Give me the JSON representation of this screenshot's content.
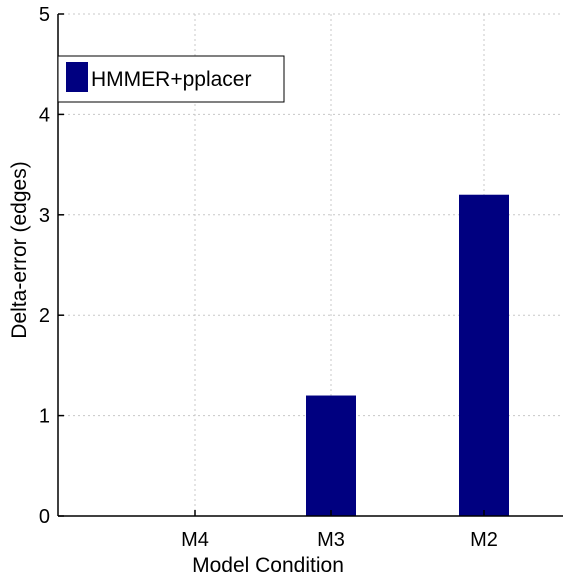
{
  "chart_data": {
    "type": "bar",
    "categories": [
      "M4",
      "M3",
      "M2"
    ],
    "series": [
      {
        "name": "HMMER+pplacer",
        "values": [
          0,
          1.2,
          3.2
        ]
      }
    ],
    "title": "",
    "xlabel": "Model Condition",
    "ylabel": "Delta-error (edges)",
    "ylim": [
      0,
      5
    ],
    "yticks": [
      "0",
      "1",
      "2",
      "3",
      "4",
      "5"
    ],
    "grid": true,
    "legend_placement": "top-left",
    "bar_color": "#000080"
  }
}
